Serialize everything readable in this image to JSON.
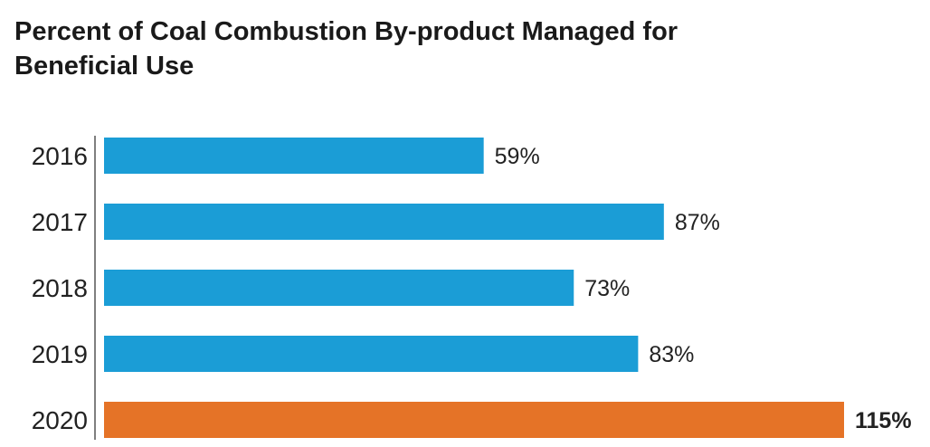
{
  "title": "Percent of Coal Combustion By-product Managed for Beneficial Use",
  "colors": {
    "default_bar": "#1b9dd6",
    "highlight_bar": "#e57327",
    "axis": "#555555"
  },
  "chart_data": {
    "type": "bar",
    "orientation": "horizontal",
    "title": "Percent of Coal Combustion By-product Managed for Beneficial Use",
    "xlabel": "",
    "ylabel": "",
    "categories": [
      "2016",
      "2017",
      "2018",
      "2019",
      "2020"
    ],
    "values": [
      59,
      87,
      73,
      83,
      115
    ],
    "value_labels": [
      "59%",
      "87%",
      "73%",
      "83%",
      "115%"
    ],
    "highlighted": [
      false,
      false,
      false,
      false,
      true
    ],
    "xlim": [
      0,
      115
    ],
    "grid": false,
    "legend": "none"
  }
}
